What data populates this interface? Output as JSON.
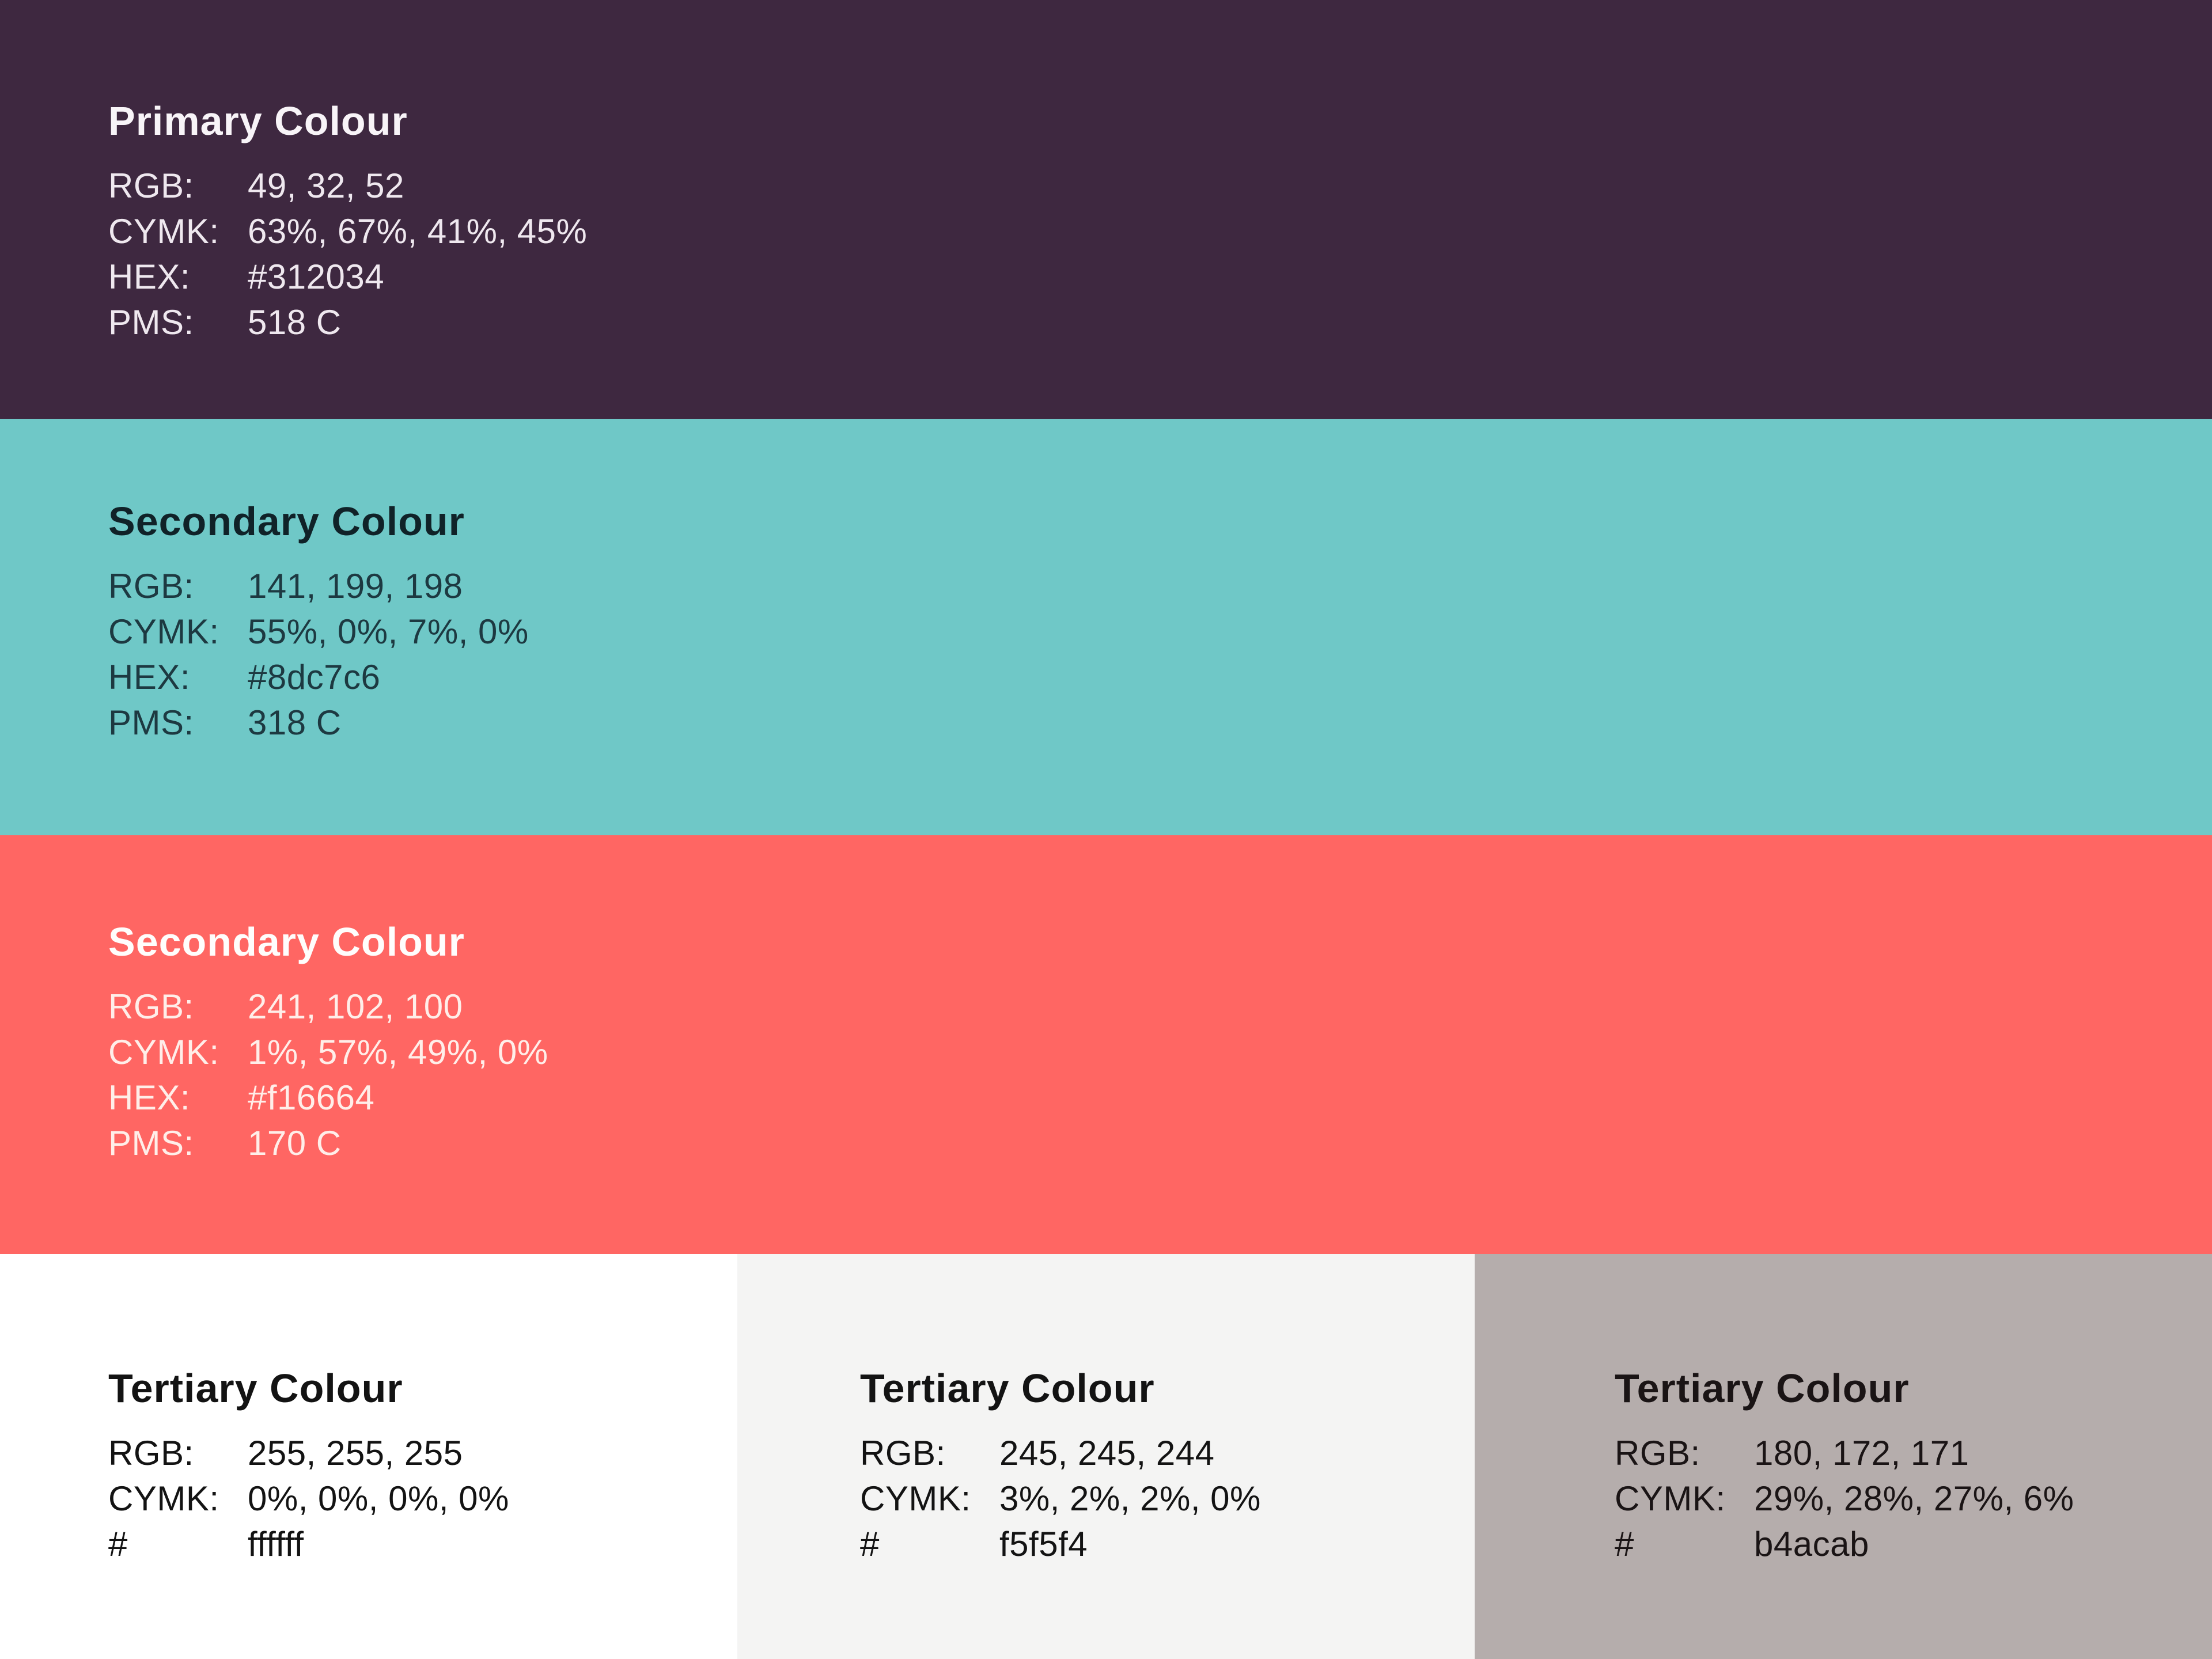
{
  "blocks": [
    {
      "title": "Primary Colour",
      "swatch_hex": "#3e2840",
      "rows": [
        {
          "label": "RGB:",
          "value": "49, 32, 52"
        },
        {
          "label": "CYMK:",
          "value": "63%, 67%, 41%, 45%"
        },
        {
          "label": "HEX:",
          "value": "#312034"
        },
        {
          "label": "PMS:",
          "value": "518 C"
        }
      ]
    },
    {
      "title": "Secondary Colour",
      "swatch_hex": "#6fc8c7",
      "rows": [
        {
          "label": "RGB:",
          "value": "141, 199, 198"
        },
        {
          "label": "CYMK:",
          "value": "55%, 0%, 7%, 0%"
        },
        {
          "label": "HEX:",
          "value": "#8dc7c6"
        },
        {
          "label": "PMS:",
          "value": "318 C"
        }
      ]
    },
    {
      "title": "Secondary Colour",
      "swatch_hex": "#ff6663",
      "rows": [
        {
          "label": "RGB:",
          "value": "241, 102, 100"
        },
        {
          "label": "CYMK:",
          "value": "1%, 57%, 49%, 0%"
        },
        {
          "label": "HEX:",
          "value": "#f16664"
        },
        {
          "label": "PMS:",
          "value": "170 C"
        }
      ]
    },
    {
      "title": "Tertiary Colour",
      "swatch_hex": "#ffffff",
      "rows": [
        {
          "label": "RGB:",
          "value": "255, 255, 255"
        },
        {
          "label": "CYMK:",
          "value": "0%, 0%, 0%, 0%"
        },
        {
          "label": "#",
          "value": "ffffff"
        }
      ]
    },
    {
      "title": "Tertiary Colour",
      "swatch_hex": "#f4f4f3",
      "rows": [
        {
          "label": "RGB:",
          "value": "245, 245, 244"
        },
        {
          "label": "CYMK:",
          "value": "3%, 2%, 2%, 0%"
        },
        {
          "label": "#",
          "value": "f5f5f4"
        }
      ]
    },
    {
      "title": "Tertiary Colour",
      "swatch_hex": "#b5adac",
      "rows": [
        {
          "label": "RGB:",
          "value": "180, 172, 171"
        },
        {
          "label": "CYMK:",
          "value": "29%, 28%, 27%, 6%"
        },
        {
          "label": "#",
          "value": "b4acab"
        }
      ]
    }
  ]
}
